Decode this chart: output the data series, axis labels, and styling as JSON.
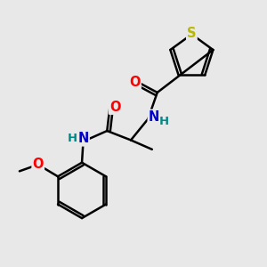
{
  "bg_color": "#e8e8e8",
  "bond_color": "#000000",
  "bond_width": 1.8,
  "atom_colors": {
    "S": "#b8b800",
    "O": "#ff0000",
    "N": "#0000cc",
    "H": "#008888",
    "C": "#000000"
  },
  "font_size": 9.5,
  "fig_width": 3.0,
  "fig_height": 3.0,
  "dpi": 100
}
